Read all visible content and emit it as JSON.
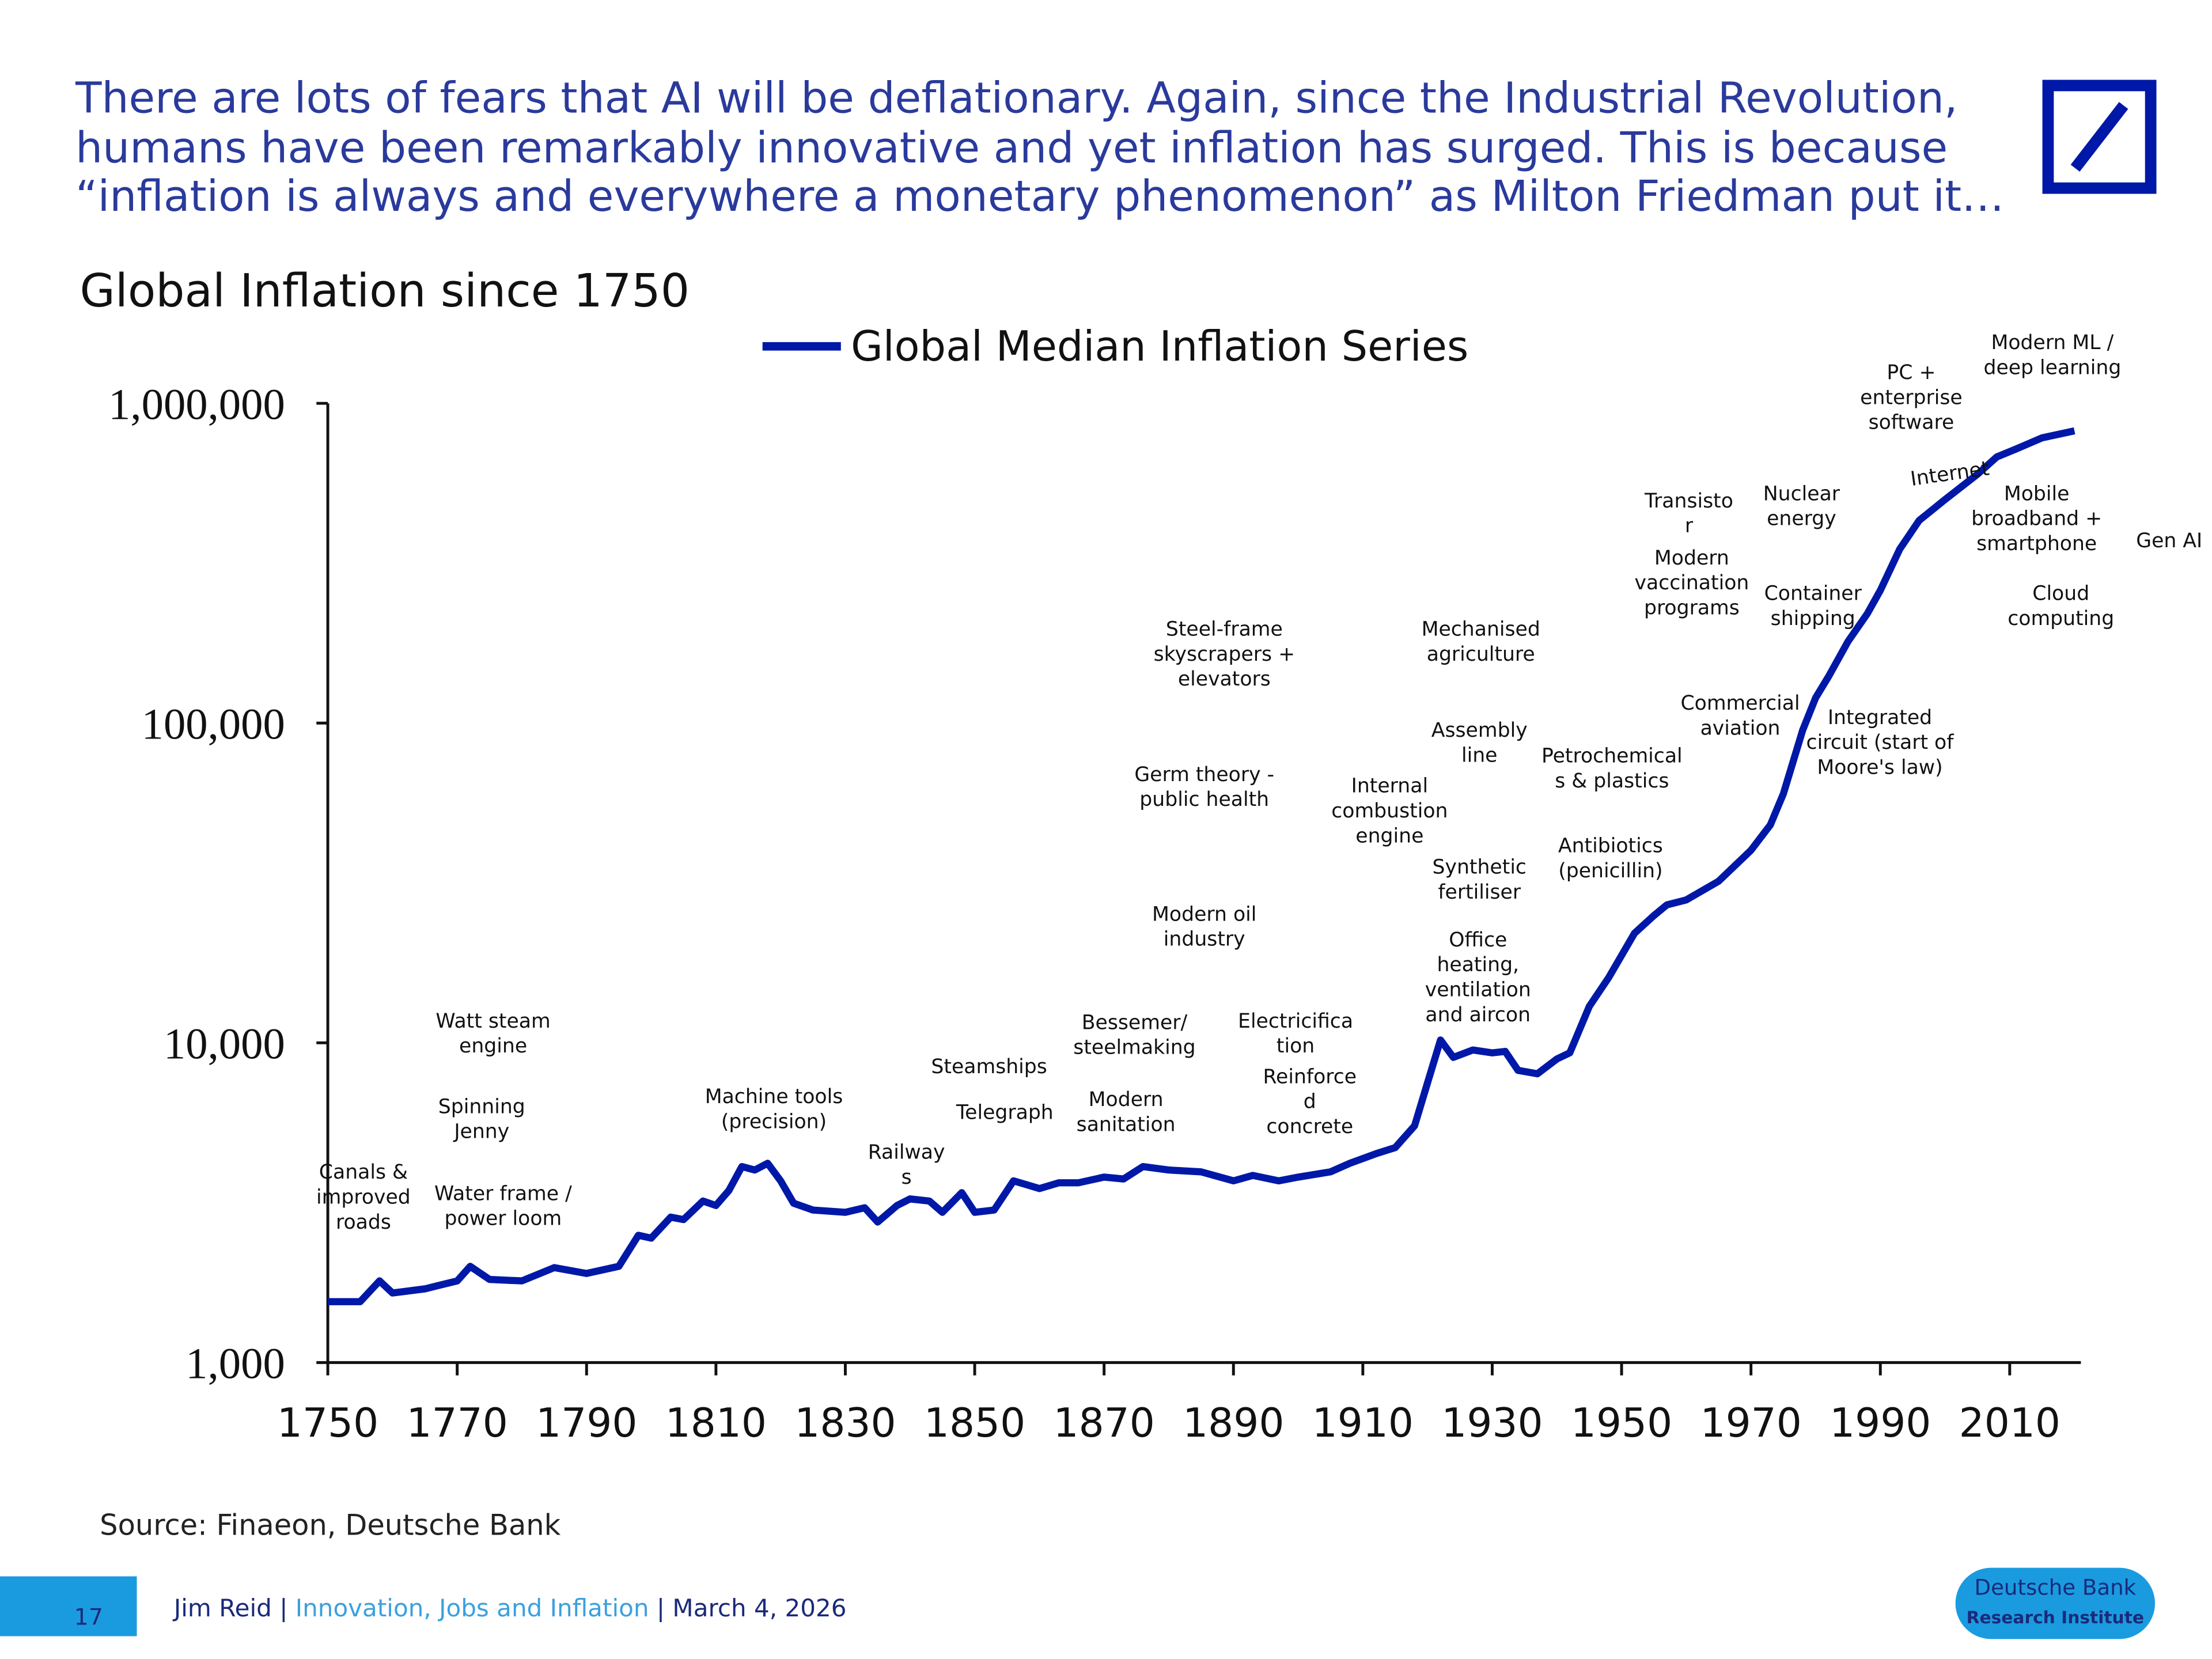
{
  "headline": [
    "There are lots of fears that AI will be deflationary. Again, since the Industrial Revolution,",
    "humans have been remarkably innovative and yet inflation has surged. This is because",
    "“inflation is always and everywhere a monetary phenomenon” as Milton Friedman put it…"
  ],
  "source": "Source: Finaeon, Deutsche Bank",
  "footer": {
    "page": "17",
    "author": "Jim Reid",
    "separator": "|",
    "report": "Innovation, Jobs and Inflation",
    "date": "March 4, 2026",
    "badge": [
      "Deutsche Bank",
      "Research Institute"
    ]
  },
  "chart_data": {
    "type": "line",
    "title": "Global Inflation since 1750",
    "log_scale": true,
    "x": [
      1750,
      1755,
      1758,
      1760,
      1765,
      1770,
      1772,
      1775,
      1780,
      1785,
      1790,
      1795,
      1798,
      1800,
      1803,
      1805,
      1808,
      1810,
      1812,
      1814,
      1816,
      1818,
      1820,
      1822,
      1825,
      1830,
      1833,
      1835,
      1838,
      1840,
      1843,
      1845,
      1848,
      1850,
      1853,
      1856,
      1858,
      1860,
      1863,
      1866,
      1870,
      1873,
      1876,
      1880,
      1885,
      1890,
      1893,
      1897,
      1900,
      1905,
      1908,
      1912,
      1915,
      1918,
      1920,
      1922,
      1924,
      1927,
      1930,
      1932,
      1934,
      1937,
      1940,
      1942,
      1945,
      1948,
      1952,
      1955,
      1957,
      1960,
      1965,
      1970,
      1973,
      1975,
      1978,
      1980,
      1982,
      1985,
      1988,
      1990,
      1993,
      1996,
      2000,
      2005,
      2008,
      2011,
      2015,
      2020
    ],
    "series": [
      {
        "name": "Global Median Inflation Series",
        "color": "#0018a8",
        "values": [
          1550,
          1550,
          1800,
          1650,
          1700,
          1800,
          2000,
          1820,
          1800,
          1980,
          1900,
          2000,
          2500,
          2450,
          2850,
          2800,
          3200,
          3100,
          3450,
          4100,
          4000,
          4200,
          3700,
          3150,
          3000,
          2950,
          3050,
          2750,
          3100,
          3250,
          3200,
          2950,
          3400,
          2950,
          3000,
          3700,
          3600,
          3500,
          3650,
          3650,
          3800,
          3750,
          4100,
          4000,
          3950,
          3700,
          3850,
          3700,
          3800,
          3950,
          4200,
          4500,
          4700,
          5500,
          7500,
          10200,
          9000,
          9500,
          9300,
          9400,
          8200,
          8000,
          8900,
          9300,
          13000,
          16000,
          22000,
          25000,
          27000,
          28000,
          32000,
          40000,
          48000,
          60000,
          95000,
          120000,
          140000,
          180000,
          220000,
          260000,
          350000,
          430000,
          500000,
          600000,
          680000,
          720000,
          780000,
          820000
        ]
      }
    ],
    "xlim": [
      1750,
      2021
    ],
    "xticks": [
      1750,
      1770,
      1790,
      1810,
      1830,
      1850,
      1870,
      1890,
      1910,
      1930,
      1950,
      1970,
      1990,
      2010
    ],
    "ylim": [
      1000,
      1000000
    ],
    "yticks": [
      {
        "value": 1000,
        "label": "1,000"
      },
      {
        "value": 10000,
        "label": "10,000"
      },
      {
        "value": 100000,
        "label": "100,000"
      },
      {
        "value": 1000000,
        "label": "1,000,000"
      }
    ],
    "annotations": [
      [
        "Canals &",
        "improved",
        "roads"
      ],
      [
        "Watt steam",
        "engine"
      ],
      [
        "Spinning",
        "Jenny"
      ],
      [
        "Water frame /",
        "power loom"
      ],
      [
        "Machine tools",
        "(precision)"
      ],
      [
        "Railway",
        "s"
      ],
      [
        "Steamships"
      ],
      [
        "Telegraph"
      ],
      [
        "Bessemer/",
        "steelmaking"
      ],
      [
        "Modern",
        "sanitation"
      ],
      [
        "Steel-frame",
        "skyscrapers +",
        "elevators"
      ],
      [
        "Germ theory -",
        "public health"
      ],
      [
        "Modern oil",
        "industry"
      ],
      [
        "Electricifica",
        "tion"
      ],
      [
        "Reinforce",
        "d",
        "concrete"
      ],
      [
        "Internal",
        "combustion",
        "engine"
      ],
      [
        "Mechanised",
        "agriculture"
      ],
      [
        "Assembly",
        "line"
      ],
      [
        "Synthetic",
        "fertiliser"
      ],
      [
        "Office",
        "heating,",
        "ventilation",
        "and aircon"
      ],
      [
        "Petrochemical",
        "s & plastics"
      ],
      [
        "Antibiotics",
        "(penicillin)"
      ],
      [
        "Transisto",
        "r"
      ],
      [
        "Modern",
        "vaccination",
        "programs"
      ],
      [
        "Nuclear",
        "energy"
      ],
      [
        "Container",
        "shipping"
      ],
      [
        "Commercial",
        "aviation"
      ],
      [
        "Integrated",
        "circuit (start of",
        "Moore's law)"
      ],
      [
        "PC +",
        "enterprise",
        "software"
      ],
      [
        "Internet"
      ],
      [
        "Modern ML /",
        "deep learning"
      ],
      [
        "Mobile",
        "broadband +",
        "smartphone"
      ],
      [
        "Cloud",
        "computing"
      ],
      [
        "Gen AI"
      ]
    ]
  }
}
